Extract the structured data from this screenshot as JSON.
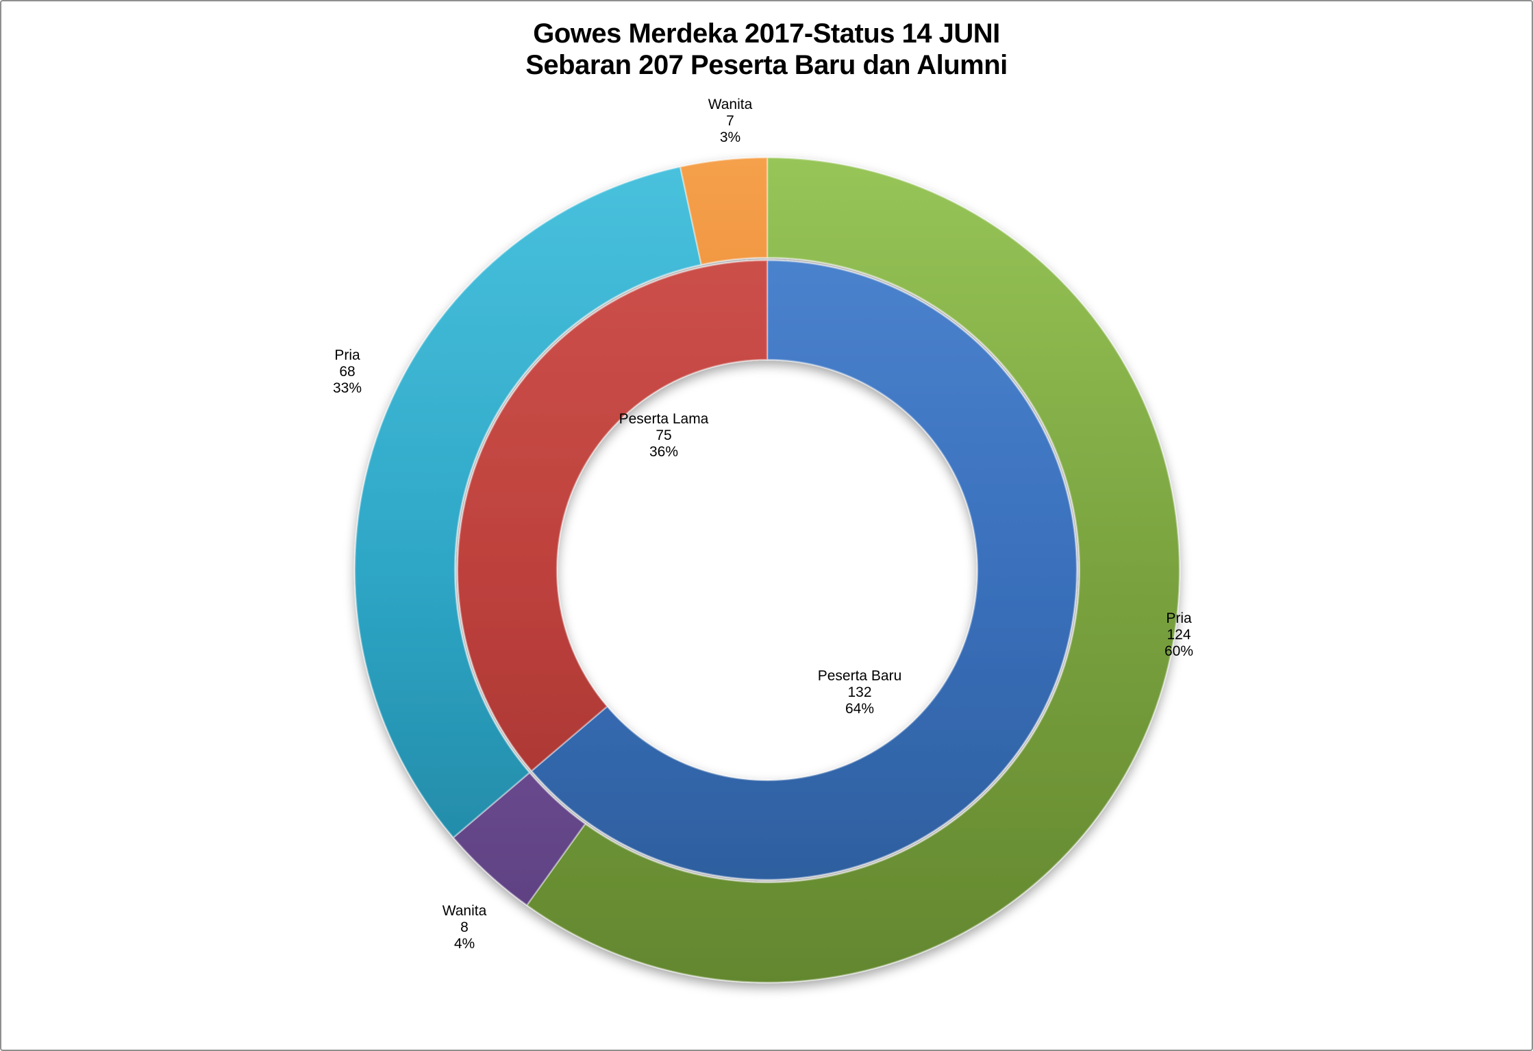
{
  "chart_data": {
    "type": "donut",
    "title_line1": "Gowes Merdeka 2017-Status 14 JUNI",
    "title_line2": "Sebaran 207 Peserta Baru dan Alumni",
    "total": 207,
    "direction": "clockwise",
    "start_angle_deg": 0,
    "legend": "none",
    "background": "#ffffff",
    "frame_border_color": "#8f8f8f",
    "rings": [
      {
        "name": "inner",
        "series": "Status Peserta",
        "slices": [
          {
            "label": "Peserta Baru",
            "value": 132,
            "pct": "64%",
            "color": "#3a70bc",
            "color_light": "#5088d2",
            "color_dark": "#2a5a96"
          },
          {
            "label": "Peserta Lama",
            "value": 75,
            "pct": "36%",
            "color": "#be413d",
            "color_light": "#d0544e",
            "color_dark": "#9c302d"
          }
        ]
      },
      {
        "name": "outer",
        "series": "Gender per Status",
        "slices": [
          {
            "label": "Pria",
            "value": 124,
            "pct": "60%",
            "color": "#7aa33f",
            "color_light": "#97c558",
            "color_dark": "#63872f"
          },
          {
            "label": "Wanita",
            "value": 8,
            "pct": "4%",
            "color": "#74519c",
            "color_light": "#8e6db8",
            "color_dark": "#5b3f7d"
          },
          {
            "label": "Pria",
            "value": 68,
            "pct": "33%",
            "color": "#2ea6c6",
            "color_light": "#49c2de",
            "color_dark": "#1e7f9b"
          },
          {
            "label": "Wanita",
            "value": 7,
            "pct": "3%",
            "color": "#e8822b",
            "color_light": "#f5a04b",
            "color_dark": "#c2660f"
          }
        ]
      }
    ]
  }
}
